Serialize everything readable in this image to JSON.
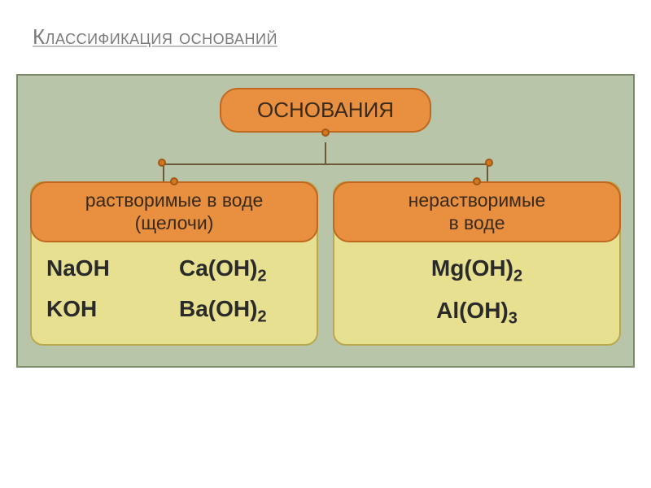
{
  "title": "Классификация оснований",
  "diagram": {
    "background_color": "#b8c5a8",
    "border_color": "#7a8a6a",
    "root": {
      "label": "ОСНОВАНИЯ",
      "fill": "#e89040",
      "border": "#c06820",
      "text_color": "#3a2a1a",
      "fontsize": 26,
      "border_radius": 22
    },
    "connector": {
      "line_color": "#6a5a3a",
      "dot_fill": "#d47820",
      "dot_border": "#a05818"
    },
    "groups": [
      {
        "header_line1": "растворимые в воде",
        "header_line2": "(щелочи)",
        "header_fill": "#e89040",
        "header_border": "#c06820",
        "body_fill": "#e6e090",
        "body_border": "#b8a850",
        "formulas": [
          {
            "text": "NaOH"
          },
          {
            "text": "Ca(OH)",
            "sub": "2"
          },
          {
            "text": "KOH"
          },
          {
            "text": "Ba(OH)",
            "sub": "2"
          }
        ],
        "formula_fontsize": 28,
        "formula_color": "#2a2a2a"
      },
      {
        "header_line1": "нерастворимые",
        "header_line2": "в воде",
        "header_fill": "#e89040",
        "header_border": "#c06820",
        "body_fill": "#e6e090",
        "body_border": "#b8a850",
        "formulas": [
          {
            "text": "Mg(OH)",
            "sub": "2"
          },
          {
            "text": "Al(OH)",
            "sub": "3"
          }
        ],
        "formula_fontsize": 28,
        "formula_color": "#2a2a2a"
      }
    ]
  },
  "title_style": {
    "fontsize": 26,
    "color": "#7a7a7a",
    "underline_color": "#c0c0c0"
  }
}
